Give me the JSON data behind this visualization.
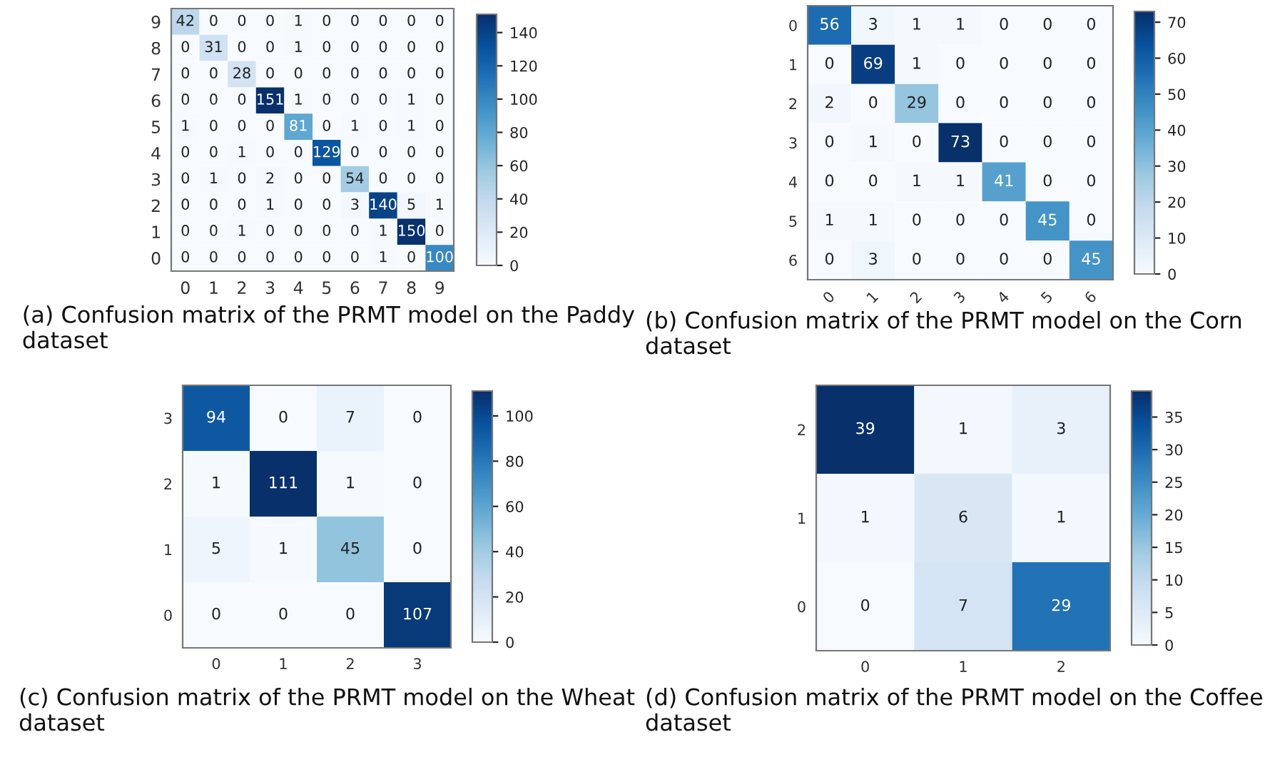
{
  "chart_data": [
    {
      "type": "heatmap",
      "categories": [
        "0",
        "1",
        "2",
        "3",
        "4",
        "5",
        "6",
        "7",
        "8",
        "9"
      ],
      "y_categories": [
        "9",
        "8",
        "7",
        "6",
        "5",
        "4",
        "3",
        "2",
        "1",
        "0"
      ],
      "cells": [
        [
          42,
          0,
          0,
          0,
          1,
          0,
          0,
          0,
          0,
          0
        ],
        [
          0,
          31,
          0,
          0,
          1,
          0,
          0,
          0,
          0,
          0
        ],
        [
          0,
          0,
          28,
          0,
          0,
          0,
          0,
          0,
          0,
          0
        ],
        [
          0,
          0,
          0,
          151,
          1,
          0,
          0,
          0,
          1,
          0
        ],
        [
          1,
          0,
          0,
          0,
          81,
          0,
          1,
          0,
          1,
          0
        ],
        [
          0,
          0,
          1,
          0,
          0,
          129,
          0,
          0,
          0,
          0
        ],
        [
          0,
          1,
          0,
          2,
          0,
          0,
          54,
          0,
          0,
          0
        ],
        [
          0,
          0,
          0,
          1,
          0,
          0,
          3,
          140,
          5,
          1
        ],
        [
          0,
          0,
          1,
          0,
          0,
          0,
          0,
          1,
          150,
          0
        ],
        [
          0,
          0,
          0,
          0,
          0,
          0,
          0,
          1,
          0,
          100
        ]
      ],
      "clim": [
        0,
        151
      ],
      "cticks": [
        0,
        20,
        40,
        60,
        80,
        100,
        120,
        140
      ],
      "data_labels": true,
      "annotations": [
        "(a) Confusion matrix of the PRMT model on the Paddy dataset"
      ]
    },
    {
      "type": "heatmap",
      "categories": [
        "0",
        "1",
        "2",
        "3",
        "4",
        "5",
        "6"
      ],
      "y_categories": [
        "0",
        "1",
        "2",
        "3",
        "4",
        "5",
        "6"
      ],
      "cells": [
        [
          56,
          3,
          1,
          1,
          0,
          0,
          0
        ],
        [
          0,
          69,
          1,
          0,
          0,
          0,
          0
        ],
        [
          2,
          0,
          29,
          0,
          0,
          0,
          0
        ],
        [
          0,
          1,
          0,
          73,
          0,
          0,
          0
        ],
        [
          0,
          0,
          1,
          1,
          41,
          0,
          0
        ],
        [
          1,
          1,
          0,
          0,
          0,
          45,
          0
        ],
        [
          0,
          3,
          0,
          0,
          0,
          0,
          45
        ]
      ],
      "clim": [
        0,
        73
      ],
      "cticks": [
        0,
        10,
        20,
        30,
        40,
        50,
        60,
        70
      ],
      "data_labels": true,
      "annotations": [
        "(b) Confusion matrix of the PRMT model on the Corn dataset"
      ]
    },
    {
      "type": "heatmap",
      "categories": [
        "0",
        "1",
        "2",
        "3"
      ],
      "y_categories": [
        "3",
        "2",
        "1",
        "0"
      ],
      "cells": [
        [
          94,
          0,
          7,
          0
        ],
        [
          1,
          111,
          1,
          0
        ],
        [
          5,
          1,
          45,
          0
        ],
        [
          0,
          0,
          0,
          107
        ]
      ],
      "clim": [
        0,
        111
      ],
      "cticks": [
        0,
        20,
        40,
        60,
        80,
        100
      ],
      "data_labels": true,
      "annotations": [
        "(c) Confusion matrix of the PRMT model on the Wheat dataset"
      ]
    },
    {
      "type": "heatmap",
      "categories": [
        "0",
        "1",
        "2"
      ],
      "y_categories": [
        "2",
        "1",
        "0"
      ],
      "cells": [
        [
          39,
          1,
          3
        ],
        [
          1,
          6,
          1
        ],
        [
          0,
          7,
          29
        ]
      ],
      "clim": [
        0,
        39
      ],
      "cticks": [
        0,
        5,
        10,
        15,
        20,
        25,
        30,
        35
      ],
      "data_labels": true,
      "annotations": [
        "(d) Confusion matrix of the PRMT model on the Coffee dataset"
      ]
    }
  ]
}
